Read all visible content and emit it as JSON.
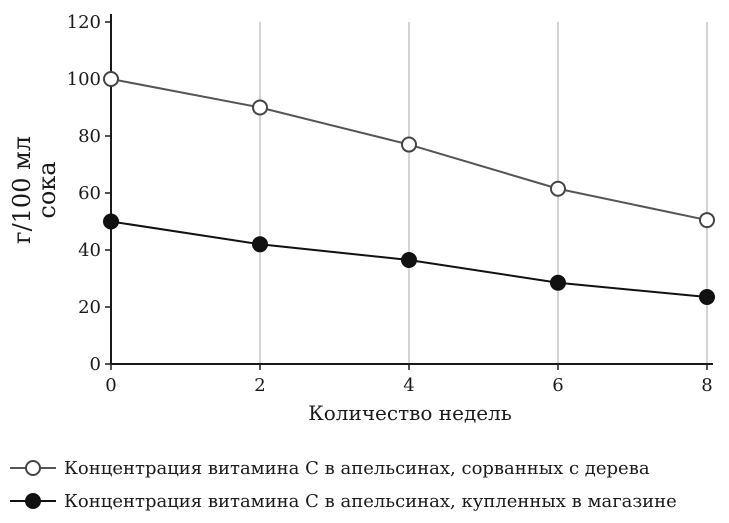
{
  "chart_data": {
    "type": "line",
    "xlabel": "Количество недель",
    "ylabel_line1": "г/100 мл",
    "ylabel_line2": "сока",
    "xlim": [
      0,
      8
    ],
    "ylim": [
      0,
      120
    ],
    "x_ticks": [
      0,
      2,
      4,
      6,
      8
    ],
    "y_ticks": [
      0,
      20,
      40,
      60,
      80,
      100,
      120
    ],
    "grid": "vertical",
    "legend_position": "bottom",
    "x": [
      0,
      2,
      4,
      6,
      8
    ],
    "series": [
      {
        "name": "Концентрация витамина C в апельсинах, сорванных с дерева",
        "marker": "open-circle",
        "values": [
          100,
          90,
          77,
          61.5,
          50.5
        ]
      },
      {
        "name": "Концентрация витамина C в апельсинах, купленных в магазине",
        "marker": "filled-circle",
        "values": [
          50,
          42,
          36.5,
          28.5,
          23.5
        ]
      }
    ],
    "colors": {
      "line1": "#555555",
      "line2": "#111111",
      "axis": "#1a1a1a",
      "grid": "#b8b8b8"
    }
  }
}
